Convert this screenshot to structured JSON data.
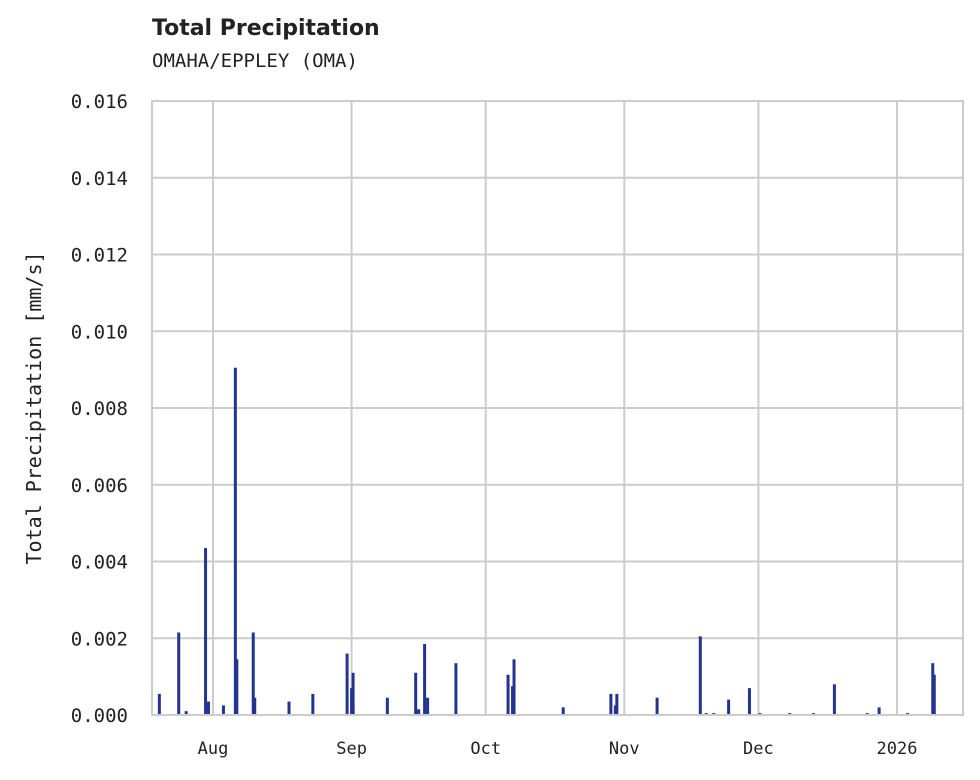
{
  "header": {
    "title": "Total Precipitation",
    "subtitle": "OMAHA/EPPLEY (OMA)"
  },
  "colors": {
    "bar": "#22348f",
    "grid": "#cccccc",
    "axis": "#cccccc"
  },
  "chart_data": {
    "type": "bar",
    "title": "Total Precipitation",
    "subtitle": "OMAHA/EPPLEY (OMA)",
    "xlabel": "",
    "ylabel": "Total Precipitation [mm/s]",
    "ylim": [
      0,
      0.016
    ],
    "yticks": [
      "0.000",
      "0.002",
      "0.004",
      "0.006",
      "0.008",
      "0.010",
      "0.012",
      "0.014",
      "0.016"
    ],
    "xticks": [
      "Aug",
      "Sep",
      "Oct",
      "Nov",
      "Dec",
      "2026"
    ],
    "grid": true,
    "legend": null,
    "x_range": [
      "2025-07-18",
      "2026-01-14"
    ],
    "points": [
      {
        "date": "2025-07-20",
        "value": 0.00055
      },
      {
        "date": "2025-07-24",
        "value": 0.00215
      },
      {
        "date": "2025-07-26",
        "value": 0.0001
      },
      {
        "date": "2025-07-30",
        "value": 0.00435
      },
      {
        "date": "2025-07-31",
        "value": 0.00035
      },
      {
        "date": "2025-08-03",
        "value": 0.00025
      },
      {
        "date": "2025-08-06",
        "value": 0.00905
      },
      {
        "date": "2025-08-06",
        "value": 0.00145
      },
      {
        "date": "2025-08-10",
        "value": 0.00215
      },
      {
        "date": "2025-08-10",
        "value": 0.00045
      },
      {
        "date": "2025-08-18",
        "value": 0.00035
      },
      {
        "date": "2025-08-23",
        "value": 0.00055
      },
      {
        "date": "2025-08-31",
        "value": 0.0016
      },
      {
        "date": "2025-09-01",
        "value": 0.0011
      },
      {
        "date": "2025-09-01",
        "value": 0.0007
      },
      {
        "date": "2025-09-01",
        "value": 0.0003
      },
      {
        "date": "2025-09-09",
        "value": 0.00045
      },
      {
        "date": "2025-09-15",
        "value": 0.0011
      },
      {
        "date": "2025-09-16",
        "value": 0.00015
      },
      {
        "date": "2025-09-17",
        "value": 0.00185
      },
      {
        "date": "2025-09-18",
        "value": 0.00045
      },
      {
        "date": "2025-09-24",
        "value": 0.00135
      },
      {
        "date": "2025-10-06",
        "value": 0.00105
      },
      {
        "date": "2025-10-07",
        "value": 0.00145
      },
      {
        "date": "2025-10-07",
        "value": 0.00075
      },
      {
        "date": "2025-10-18",
        "value": 0.0002
      },
      {
        "date": "2025-10-29",
        "value": 0.00055
      },
      {
        "date": "2025-10-30",
        "value": 0.00055
      },
      {
        "date": "2025-10-30",
        "value": 0.00025
      },
      {
        "date": "2025-11-08",
        "value": 0.00045
      },
      {
        "date": "2025-11-18",
        "value": 0.00205
      },
      {
        "date": "2025-11-19",
        "value": 5e-05
      },
      {
        "date": "2025-11-21",
        "value": 5e-05
      },
      {
        "date": "2025-11-24",
        "value": 0.0004
      },
      {
        "date": "2025-11-29",
        "value": 0.0007
      },
      {
        "date": "2025-12-01",
        "value": 5e-05
      },
      {
        "date": "2025-12-08",
        "value": 5e-05
      },
      {
        "date": "2025-12-13",
        "value": 5e-05
      },
      {
        "date": "2025-12-18",
        "value": 0.0008
      },
      {
        "date": "2025-12-25",
        "value": 5e-05
      },
      {
        "date": "2025-12-28",
        "value": 0.0002
      },
      {
        "date": "2026-01-03",
        "value": 5e-05
      },
      {
        "date": "2026-01-09",
        "value": 0.00135
      },
      {
        "date": "2026-01-09",
        "value": 0.00105
      }
    ]
  }
}
